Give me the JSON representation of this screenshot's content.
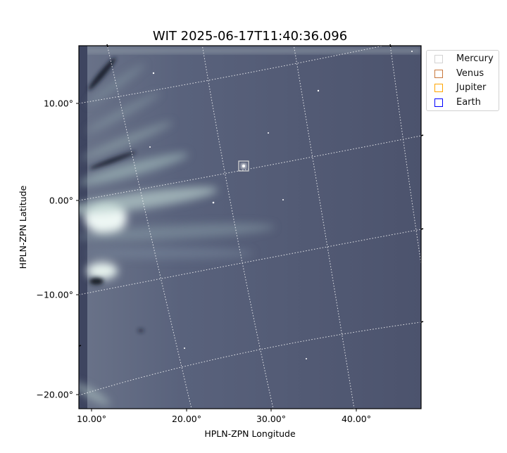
{
  "chart_data": {
    "type": "image",
    "title": "WIT 2025-06-17T11:40:36.096",
    "xlabel": "HPLN-ZPN Longitude",
    "ylabel": "HPLN-ZPN Latitude",
    "xticks": [
      "10.00°",
      "20.00°",
      "30.00°",
      "40.00°"
    ],
    "yticks": [
      "10.00°",
      "0.00°",
      "−10.00°",
      "−20.00°"
    ],
    "colormap": "bone",
    "grid": "dotted coordinate grid",
    "legend_position": "outside top-right",
    "legend": [
      {
        "name": "Mercury",
        "color": "#d3d3d3"
      },
      {
        "name": "Venus",
        "color": "#c8783c"
      },
      {
        "name": "Jupiter",
        "color": "#ffa500"
      },
      {
        "name": "Earth",
        "color": "#0000ff"
      }
    ],
    "markers": [
      {
        "object": "bright point source",
        "box_color": "#d3d3d3"
      }
    ]
  }
}
